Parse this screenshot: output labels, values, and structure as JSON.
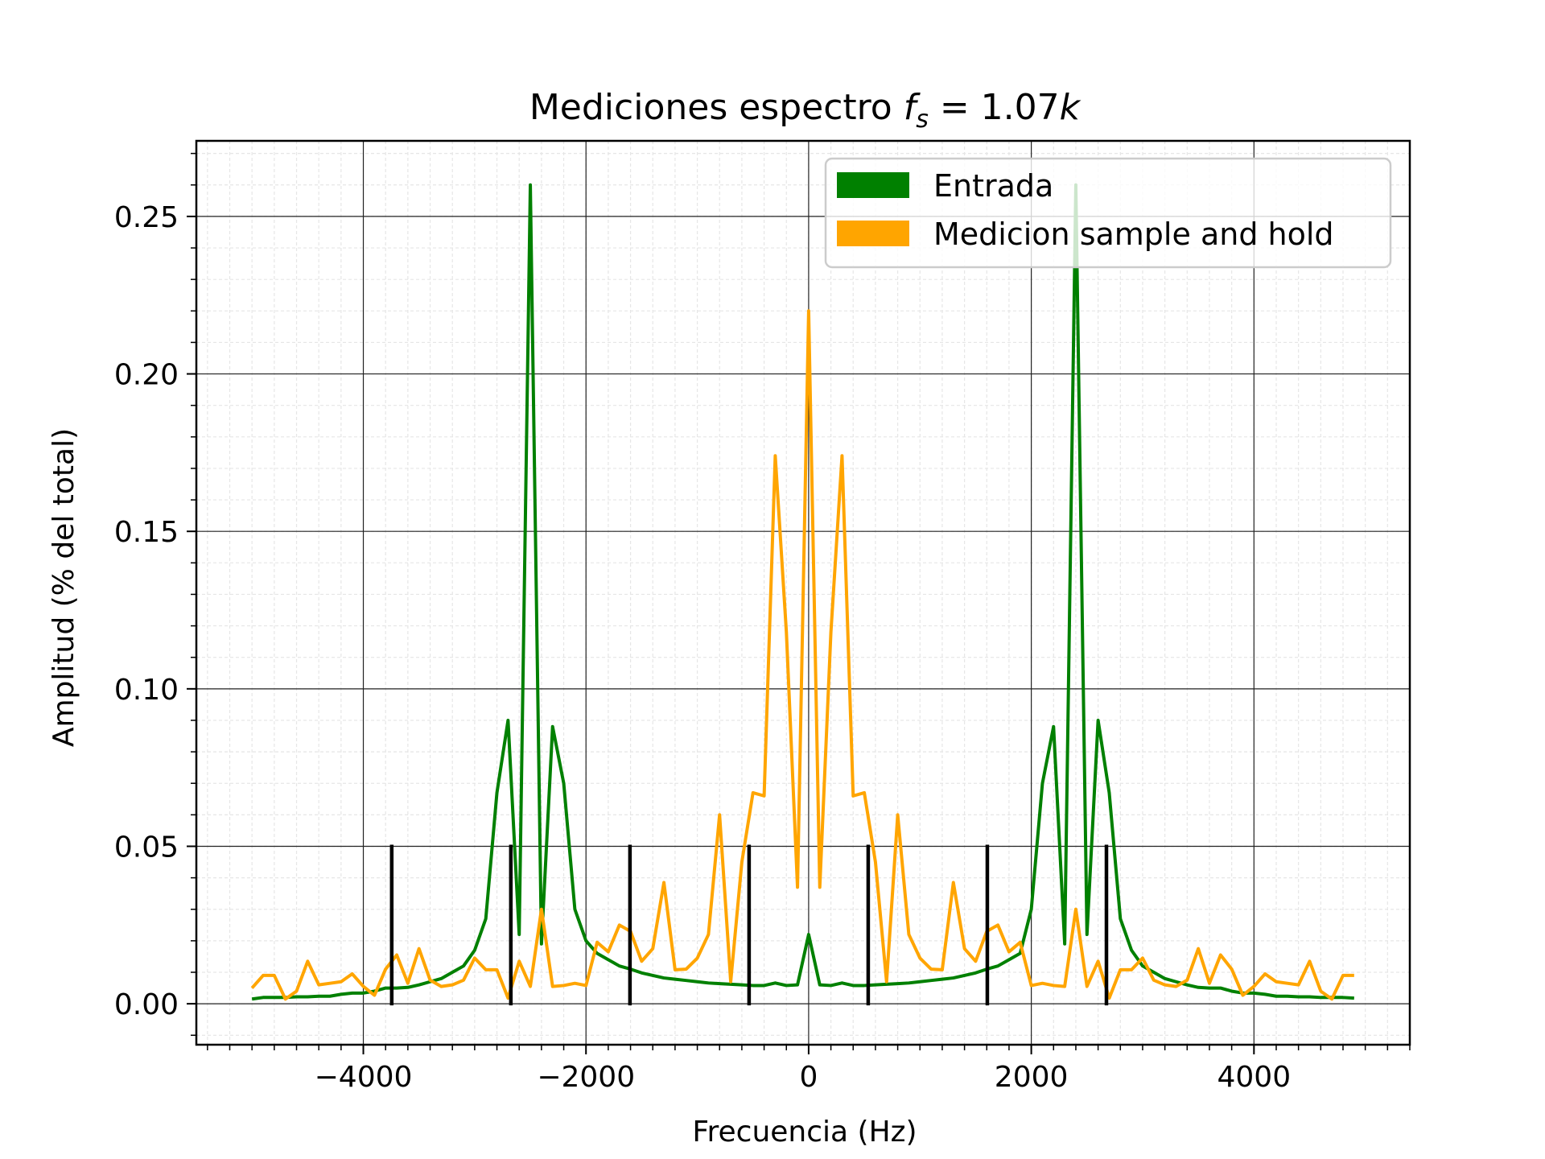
{
  "chart_data": {
    "type": "line",
    "title_prefix": "Mediciones espectro ",
    "title_var": "f",
    "title_sub": "s",
    "title_suffix": " = 1.07",
    "title_unit": "k",
    "xlabel": "Frecuencia (Hz)",
    "ylabel": "Amplitud (% del total)",
    "xlim": [
      -5500,
      5400
    ],
    "ylim": [
      -0.013,
      0.274
    ],
    "xticks": [
      -4000,
      -2000,
      0,
      2000,
      4000
    ],
    "xtick_labels": [
      "−4000",
      "−2000",
      "0",
      "2000",
      "4000"
    ],
    "yticks": [
      0.0,
      0.05,
      0.1,
      0.15,
      0.2,
      0.25
    ],
    "ytick_labels": [
      "0.00",
      "0.05",
      "0.10",
      "0.15",
      "0.20",
      "0.25"
    ],
    "grid": true,
    "minor_grid": true,
    "legend_position": "top-right",
    "x": [
      -5000,
      -4900,
      -4800,
      -4700,
      -4600,
      -4500,
      -4400,
      -4300,
      -4200,
      -4100,
      -4000,
      -3900,
      -3800,
      -3700,
      -3600,
      -3500,
      -3400,
      -3300,
      -3200,
      -3100,
      -3000,
      -2900,
      -2800,
      -2700,
      -2600,
      -2500,
      -2400,
      -2300,
      -2200,
      -2100,
      -2000,
      -1900,
      -1800,
      -1700,
      -1600,
      -1500,
      -1400,
      -1300,
      -1200,
      -1100,
      -1000,
      -900,
      -800,
      -700,
      -600,
      -500,
      -400,
      -300,
      -200,
      -100,
      0,
      100,
      200,
      300,
      400,
      500,
      600,
      700,
      800,
      900,
      1000,
      1100,
      1200,
      1300,
      1400,
      1500,
      1600,
      1700,
      1800,
      1900,
      2000,
      2100,
      2200,
      2300,
      2400,
      2500,
      2600,
      2700,
      2800,
      2900,
      3000,
      3100,
      3200,
      3300,
      3400,
      3500,
      3600,
      3700,
      3800,
      3900,
      4000,
      4100,
      4200,
      4300,
      4400,
      4500,
      4600,
      4700,
      4800,
      4900
    ],
    "series": [
      {
        "name": "Entrada",
        "color": "#008000",
        "values": [
          0.0015,
          0.002,
          0.002,
          0.002,
          0.0022,
          0.0022,
          0.0024,
          0.0024,
          0.003,
          0.0034,
          0.0034,
          0.004,
          0.005,
          0.005,
          0.0052,
          0.006,
          0.007,
          0.008,
          0.01,
          0.012,
          0.017,
          0.027,
          0.067,
          0.09,
          0.022,
          0.26,
          0.019,
          0.088,
          0.07,
          0.03,
          0.02,
          0.016,
          0.014,
          0.012,
          0.011,
          0.0098,
          0.009,
          0.0082,
          0.0078,
          0.0074,
          0.007,
          0.0066,
          0.0064,
          0.0062,
          0.006,
          0.0058,
          0.0058,
          0.0066,
          0.0058,
          0.006,
          0.022,
          0.006,
          0.0058,
          0.0066,
          0.0058,
          0.0058,
          0.006,
          0.0062,
          0.0064,
          0.0066,
          0.007,
          0.0074,
          0.0078,
          0.0082,
          0.009,
          0.0098,
          0.011,
          0.012,
          0.014,
          0.016,
          0.03,
          0.07,
          0.088,
          0.019,
          0.26,
          0.022,
          0.09,
          0.067,
          0.027,
          0.017,
          0.012,
          0.01,
          0.008,
          0.007,
          0.006,
          0.0052,
          0.005,
          0.005,
          0.004,
          0.0034,
          0.0034,
          0.003,
          0.0024,
          0.0024,
          0.0022,
          0.0022,
          0.002,
          0.002,
          0.002,
          0.0018
        ]
      },
      {
        "name": "Medicion sample and hold",
        "color": "#FFA500",
        "values": [
          0.005,
          0.009,
          0.009,
          0.0015,
          0.004,
          0.0135,
          0.006,
          0.0065,
          0.007,
          0.0095,
          0.0055,
          0.0027,
          0.011,
          0.0155,
          0.0065,
          0.0175,
          0.0075,
          0.0055,
          0.006,
          0.0075,
          0.0145,
          0.0108,
          0.0108,
          0.0018,
          0.0135,
          0.0055,
          0.03,
          0.0055,
          0.0058,
          0.0065,
          0.0058,
          0.0195,
          0.0165,
          0.025,
          0.023,
          0.0135,
          0.0175,
          0.0385,
          0.0108,
          0.011,
          0.0145,
          0.022,
          0.06,
          0.007,
          0.045,
          0.067,
          0.066,
          0.174,
          0.118,
          0.037,
          0.22,
          0.037,
          0.118,
          0.174,
          0.066,
          0.067,
          0.045,
          0.007,
          0.06,
          0.022,
          0.0145,
          0.011,
          0.0108,
          0.0385,
          0.0175,
          0.0135,
          0.023,
          0.025,
          0.0165,
          0.0195,
          0.0058,
          0.0065,
          0.0058,
          0.0055,
          0.03,
          0.0055,
          0.0135,
          0.0018,
          0.0108,
          0.0108,
          0.0145,
          0.0075,
          0.006,
          0.0055,
          0.0075,
          0.0175,
          0.0065,
          0.0155,
          0.011,
          0.0027,
          0.0055,
          0.0095,
          0.007,
          0.0065,
          0.006,
          0.0135,
          0.004,
          0.0015,
          0.009,
          0.009
        ]
      }
    ],
    "markers": {
      "color": "#000000",
      "x": [
        -3745,
        -2675,
        -1605,
        -535,
        535,
        1605,
        2675
      ],
      "y_range": [
        -0.0005,
        0.0505
      ]
    },
    "legend": [
      {
        "label": "Entrada",
        "color": "#008000"
      },
      {
        "label": "Medicion sample and hold",
        "color": "#FFA500"
      }
    ]
  }
}
